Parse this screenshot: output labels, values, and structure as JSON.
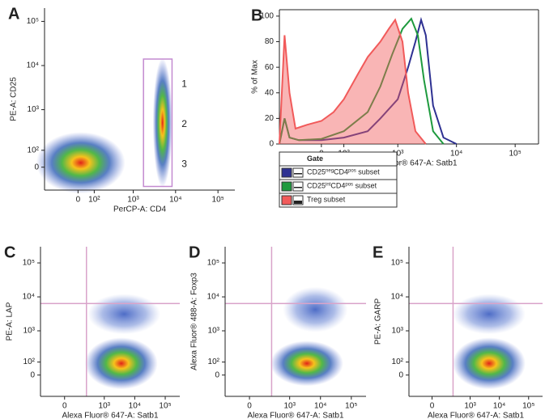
{
  "chart_data": [
    {
      "type": "density",
      "panel_label": "A",
      "x_label": "PerCP-A: CD4",
      "y_label": "PE-A: CD25",
      "xscale": "biexponential",
      "yscale": "biexponential",
      "xlim": [
        -300,
        250000
      ],
      "ylim": [
        -150,
        200000
      ],
      "xticks": [
        0,
        {
          "value": 100,
          "label": "10²"
        },
        {
          "value": 1000,
          "label": "10³"
        },
        {
          "value": 10000,
          "label": "10⁴"
        },
        {
          "value": 100000,
          "label": "10⁵"
        }
      ],
      "yticks": [
        0,
        {
          "value": 100,
          "label": "10²"
        },
        {
          "value": 1000,
          "label": "10³"
        },
        {
          "value": 10000,
          "label": "10⁴"
        },
        {
          "value": 100000,
          "label": "10⁵"
        }
      ],
      "annotations": [
        "1",
        "2",
        "3"
      ]
    },
    {
      "type": "line",
      "panel_label": "B",
      "x_label": "Alexa Fluor® 647-A: Satb1",
      "y_label": "% of Max",
      "xscale": "biexponential",
      "xlim": [
        -250,
        250000
      ],
      "ylim": [
        0,
        105
      ],
      "xticks": [
        0,
        {
          "value": 100,
          "label": "10²"
        },
        {
          "value": 1000,
          "label": "10³"
        },
        {
          "value": 10000,
          "label": "10⁴"
        },
        {
          "value": 100000,
          "label": "10⁵"
        }
      ],
      "yticks": [
        0,
        20,
        40,
        60,
        80,
        100
      ],
      "legend_title": "Gate",
      "series": [
        {
          "name": [
            "CD25",
            "neg",
            "CD4",
            "pos",
            " subset"
          ],
          "color": "#2e3192",
          "filled": false,
          "x": [
            -250,
            -200,
            -160,
            -100,
            0,
            100,
            300,
            500,
            1000,
            1500,
            2000,
            2500,
            3000,
            4000,
            6000,
            10000
          ],
          "values": [
            0,
            20,
            5,
            3,
            3,
            5,
            10,
            20,
            35,
            60,
            80,
            97,
            85,
            30,
            5,
            0
          ]
        },
        {
          "name": [
            "CD25",
            "int",
            "CD4",
            "pos",
            " subset"
          ],
          "color": "#1e9a3e",
          "filled": false,
          "x": [
            -250,
            -200,
            -160,
            -100,
            0,
            100,
            300,
            500,
            800,
            1200,
            1700,
            2200,
            2800,
            4000,
            6000
          ],
          "values": [
            0,
            20,
            5,
            3,
            4,
            10,
            25,
            45,
            70,
            90,
            98,
            85,
            50,
            10,
            0
          ]
        },
        {
          "name": [
            "Treg subset"
          ],
          "color": "#f15a5a",
          "filled": true,
          "x": [
            -250,
            -200,
            -160,
            -120,
            -60,
            0,
            50,
            100,
            200,
            300,
            500,
            700,
            900,
            1200,
            1500,
            2000,
            3000
          ],
          "values": [
            0,
            85,
            40,
            12,
            15,
            18,
            25,
            35,
            55,
            68,
            80,
            90,
            97,
            80,
            40,
            10,
            0
          ]
        }
      ]
    },
    {
      "type": "density",
      "panel_label": "C",
      "x_label": "Alexa Fluor® 647-A: Satb1",
      "y_label": "PE-A: LAP",
      "xscale": "biexponential",
      "yscale": "biexponential",
      "xlim": [
        -300,
        300000
      ],
      "ylim": [
        -200,
        300000
      ],
      "xticks": [
        0,
        {
          "value": 1000,
          "label": "10³"
        },
        {
          "value": 10000,
          "label": "10⁴"
        },
        {
          "value": 100000,
          "label": "10⁵"
        }
      ],
      "yticks": [
        0,
        {
          "value": 100,
          "label": "10²"
        },
        {
          "value": 1000,
          "label": "10³"
        },
        {
          "value": 10000,
          "label": "10⁴"
        },
        {
          "value": 100000,
          "label": "10⁵"
        }
      ]
    },
    {
      "type": "density",
      "panel_label": "D",
      "x_label": "Alexa Fluor® 647-A: Satb1",
      "y_label": "Alexa Fluor® 488-A: Foxp3",
      "xscale": "biexponential",
      "yscale": "biexponential",
      "xlim": [
        -300,
        300000
      ],
      "ylim": [
        -200,
        300000
      ],
      "xticks": [
        0,
        {
          "value": 1000,
          "label": "10³"
        },
        {
          "value": 10000,
          "label": "10⁴"
        },
        {
          "value": 100000,
          "label": "10⁵"
        }
      ],
      "yticks": [
        0,
        {
          "value": 100,
          "label": "10²"
        },
        {
          "value": 1000,
          "label": "10³"
        },
        {
          "value": 10000,
          "label": "10⁴"
        },
        {
          "value": 100000,
          "label": "10⁵"
        }
      ]
    },
    {
      "type": "density",
      "panel_label": "E",
      "x_label": "Alexa Fluor® 647-A: Satb1",
      "y_label": "PE-A: GARP",
      "xscale": "biexponential",
      "yscale": "biexponential",
      "xlim": [
        -300,
        300000
      ],
      "ylim": [
        -200,
        300000
      ],
      "xticks": [
        0,
        {
          "value": 1000,
          "label": "10³"
        },
        {
          "value": 10000,
          "label": "10⁴"
        },
        {
          "value": 100000,
          "label": "10⁵"
        }
      ],
      "yticks": [
        0,
        {
          "value": 100,
          "label": "10²"
        },
        {
          "value": 1000,
          "label": "10³"
        },
        {
          "value": 10000,
          "label": "10⁴"
        },
        {
          "value": 100000,
          "label": "10⁵"
        }
      ]
    }
  ]
}
